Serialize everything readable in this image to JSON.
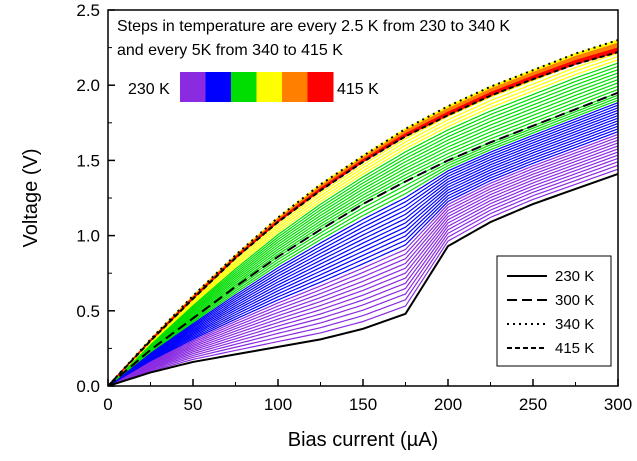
{
  "chart_data": {
    "type": "line",
    "title": "",
    "xlabel": "Bias current (µA)",
    "ylabel": "Voltage (V)",
    "xlim": [
      0,
      300
    ],
    "ylim": [
      0,
      2.5
    ],
    "x_ticks": [
      0,
      50,
      100,
      150,
      200,
      250,
      300
    ],
    "y_ticks": [
      0.0,
      0.5,
      1.0,
      1.5,
      2.0,
      2.5
    ],
    "x_tick_labels": [
      "0",
      "50",
      "100",
      "150",
      "200",
      "250",
      "300"
    ],
    "y_tick_labels": [
      "0.0",
      "0.5",
      "1.0",
      "1.5",
      "2.0",
      "2.5"
    ],
    "annotation_lines": [
      "Steps in temperature are every 2.5 K from 230 to 340 K",
      "and every 5K from 340 to 415 K"
    ],
    "colorbar": {
      "min_label": "230 K",
      "max_label": "415 K",
      "colors": [
        "#8a2be2",
        "#0000ff",
        "#00dd00",
        "#ffff00",
        "#ff8000",
        "#ff0000"
      ]
    },
    "legend_position": "bottom-right",
    "legend": [
      {
        "label": "230 K",
        "dash": "solid"
      },
      {
        "label": "300 K",
        "dash": "dashed"
      },
      {
        "label": "340 K",
        "dash": "dotted"
      },
      {
        "label": "415 K",
        "dash": "short-dashed"
      }
    ],
    "x": [
      0,
      25,
      50,
      75,
      100,
      125,
      150,
      175,
      200,
      225,
      250,
      275,
      300
    ],
    "series": [
      {
        "name": "230 K",
        "color": "#000000",
        "dash": "solid",
        "values": [
          0,
          0.09,
          0.16,
          0.21,
          0.26,
          0.31,
          0.38,
          0.48,
          0.93,
          1.09,
          1.21,
          1.31,
          1.41
        ]
      },
      {
        "name": "300 K",
        "color": "#000000",
        "dash": "dashed",
        "values": [
          0,
          0.24,
          0.45,
          0.66,
          0.86,
          1.04,
          1.21,
          1.36,
          1.5,
          1.62,
          1.73,
          1.84,
          1.95
        ]
      },
      {
        "name": "340 K",
        "color": "#000000",
        "dash": "dotted",
        "values": [
          0,
          0.31,
          0.6,
          0.87,
          1.12,
          1.34,
          1.53,
          1.71,
          1.86,
          1.99,
          2.1,
          2.21,
          2.3
        ]
      },
      {
        "name": "415 K",
        "color": "#000000",
        "dash": "short-dashed",
        "values": [
          0,
          0.3,
          0.58,
          0.85,
          1.09,
          1.3,
          1.49,
          1.66,
          1.8,
          1.93,
          2.04,
          2.14,
          2.22
        ]
      }
    ]
  }
}
